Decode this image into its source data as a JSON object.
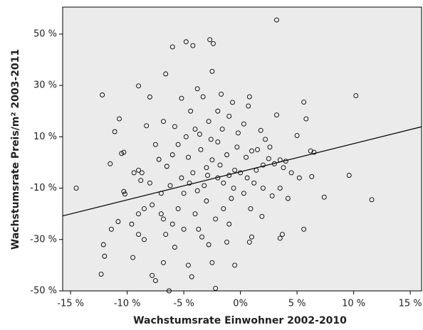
{
  "chart_data": {
    "type": "scatter",
    "x_label": "Wachstumsrate Einwohner 2002-2010",
    "y_label": "Wachstumsrate Preis/m² 2003-2011",
    "color": "#000000",
    "background": "#ebebeb",
    "xlim": [
      -15.7,
      16
    ],
    "ylim": [
      -50,
      60.5
    ],
    "xticks": [
      {
        "value": -15,
        "label": "-15 %"
      },
      {
        "value": -10,
        "label": "-10 %"
      },
      {
        "value": -5,
        "label": "-5 %"
      },
      {
        "value": 0,
        "label": "0%"
      },
      {
        "value": 5,
        "label": "5 %"
      },
      {
        "value": 10,
        "label": "10 %"
      },
      {
        "value": 15,
        "label": "15 %"
      }
    ],
    "yticks": [
      {
        "value": -50,
        "label": "-50 %"
      },
      {
        "value": -30,
        "label": "-30 %"
      },
      {
        "value": -10,
        "label": "-10 %"
      },
      {
        "value": 10,
        "label": "10 %"
      },
      {
        "value": 30,
        "label": "30 %"
      },
      {
        "value": 50,
        "label": "50 %"
      }
    ],
    "trend_line": {
      "x": [
        -15.7,
        16
      ],
      "y": [
        -20.8,
        13.9
      ]
    },
    "x": [
      3.2,
      -12.2,
      -6,
      -4.8,
      -2.7,
      -2.4,
      -4.2,
      -6.6,
      -2.5,
      10.2,
      9.6,
      11.6,
      7.4,
      6.3,
      5.6,
      -12.3,
      -12,
      -14.5,
      -6.3,
      -2.2,
      -4.3,
      -7.8,
      -7.5,
      -12.1,
      -9.5,
      -11.4,
      -10.8,
      -9,
      -8.5,
      -6.8,
      -5.8,
      -3.7,
      -2.8,
      -1.2,
      0.8,
      1,
      3.7,
      3.5,
      -0.5,
      -2.5,
      -4.6,
      -9,
      -8,
      -8.3,
      -6.8,
      -3.8,
      -1.7,
      0.8,
      0.7,
      -0.7,
      -3.3,
      3.2,
      5.6,
      5.8,
      6.2,
      6.5,
      -10.7,
      -10.5,
      -11.1,
      -11.5,
      -10.3,
      -9.4,
      -9,
      -8.7,
      -10.3,
      -10.2,
      -8.5,
      -7.8,
      -9,
      -7,
      -7.2,
      -6.5,
      -6,
      -5.5,
      -4.8,
      -4,
      -3.5,
      -3,
      -2.5,
      -2,
      -1.5,
      -1,
      -0.5,
      0,
      0.5,
      1,
      1.5,
      2,
      2.5,
      3,
      3.5,
      4,
      4.5,
      5,
      2.2,
      1.8,
      0.3,
      -0.2,
      -1,
      -2,
      -2.8,
      -3.6,
      -4.5,
      -5,
      -5.5,
      -6,
      -4,
      -3,
      -2.2,
      -1.5,
      -0.8,
      0.3,
      1.2,
      2,
      2.8,
      3.5,
      4.2,
      5.2,
      -3.2,
      -4.2,
      -5.2,
      -6.2,
      -7,
      -8,
      -1.8,
      -0.3,
      1.4,
      -2.6,
      -4.6,
      -5.8,
      -1.2,
      0.9,
      -1,
      -3.4,
      -5,
      -6.6,
      -2,
      2.6,
      3.8,
      -3.8,
      -0.6,
      0.6,
      1.9,
      -7.5,
      -8.8,
      -9.6,
      -4.4,
      -5.2,
      -6.8,
      -2.9,
      -1.6
    ],
    "values": [
      55.5,
      26.3,
      45,
      47,
      47.8,
      46.3,
      45.5,
      34.5,
      35.5,
      26,
      -5,
      -14.5,
      -13.5,
      -5.5,
      -26,
      -43.5,
      -36.5,
      -10,
      -50,
      -49,
      -44.5,
      -44,
      -46,
      -32,
      -37,
      -26,
      -23,
      -28,
      -30,
      -39,
      -33,
      -26,
      -32,
      -31,
      -31,
      -29,
      -28,
      -29.5,
      -40,
      -39,
      -40,
      29.8,
      25.5,
      14.3,
      16,
      28.7,
      26.6,
      25.6,
      22,
      23.4,
      25.6,
      18.5,
      23.5,
      17,
      4.5,
      4,
      17,
      3.5,
      12,
      -0.5,
      4,
      -4,
      -3,
      -4,
      -11.3,
      -12.3,
      -18,
      -16.5,
      -20,
      -12,
      1.2,
      -1.5,
      3,
      7,
      10,
      13,
      5,
      -2,
      1,
      -6,
      -8,
      -5,
      -3,
      -4,
      2,
      4.5,
      5,
      -1,
      1.5,
      -0.5,
      1,
      0.5,
      -4,
      10.5,
      9,
      12.5,
      15,
      11.5,
      18,
      20,
      16,
      11,
      -8,
      -12,
      -18,
      -24,
      -20,
      -15,
      -22,
      -18,
      -14,
      -12,
      -8,
      -10,
      -13,
      -10,
      -14,
      -6,
      -9,
      -4,
      -6,
      -9,
      -20,
      -8,
      -1,
      6,
      -3,
      9,
      2,
      14,
      3,
      -18,
      -24,
      -29,
      -26,
      -28,
      8,
      6,
      -2,
      -11,
      -10,
      -6,
      -21,
      7,
      -7,
      -24,
      20,
      25,
      -22,
      -5,
      13
    ]
  }
}
